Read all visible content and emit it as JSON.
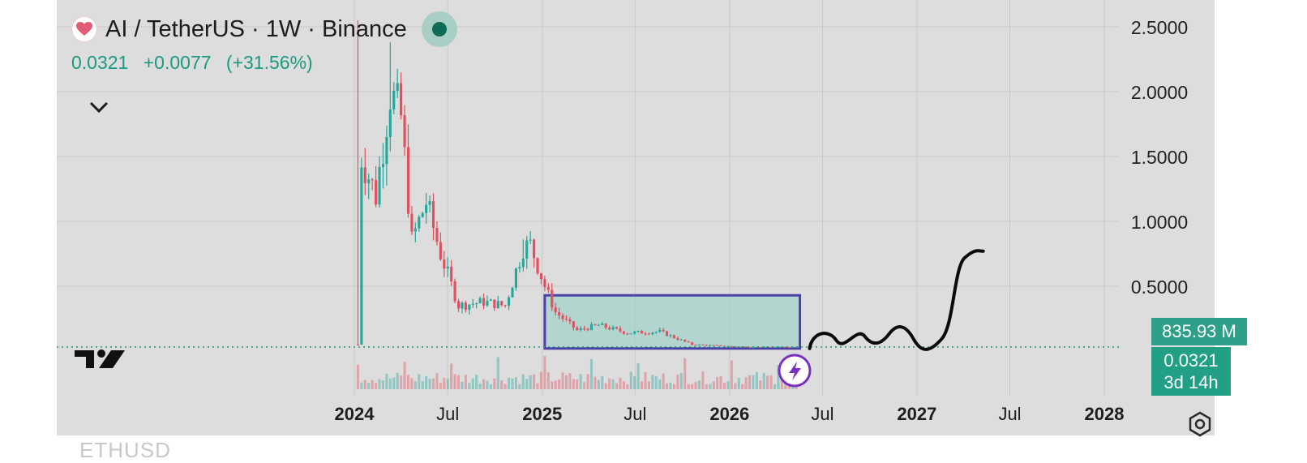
{
  "header": {
    "title": "AI / TetherUS · 1W · Binance",
    "price": "0.0321",
    "change": "+0.0077",
    "change_pct": "(+31.56%)"
  },
  "footer": {
    "next_symbol": "ETHUSD"
  },
  "badges": {
    "volume": "835.93 M",
    "price": "0.0321",
    "countdown": "3d 14h"
  },
  "colors": {
    "up": "#26a69a",
    "down": "#e0505e",
    "box_stroke": "#4b3fa8",
    "box_fill": "#9fd2ca",
    "badge": "#22a085",
    "alert": "#7b2fbe"
  },
  "icons": {
    "symbol": "heart-icon",
    "collapse": "chevron-down-icon",
    "logo": "tradingview-logo-icon",
    "settings": "gear-icon",
    "alert": "lightning-icon"
  },
  "chart_data": {
    "type": "candlestick",
    "interval": "1W",
    "y_axis_ticks": [
      "2.5000",
      "2.0000",
      "1.5000",
      "1.0000",
      "0.5000"
    ],
    "y_tick_values": [
      2.5,
      2.0,
      1.5,
      1.0,
      0.5
    ],
    "ylim": [
      0,
      2.5
    ],
    "x_axis_ticks": [
      "2024",
      "Jul",
      "2025",
      "Jul",
      "2026",
      "Jul",
      "2027",
      "Jul",
      "2028"
    ],
    "x_tick_dates": [
      "2024-01-01",
      "2024-07-01",
      "2025-01-01",
      "2025-07-01",
      "2026-01-01",
      "2026-07-01",
      "2027-01-01",
      "2027-07-01",
      "2028-01-01"
    ],
    "last_price": 0.0321,
    "price_range": {
      "high": 2.55,
      "low": 0.03
    },
    "anchors": [
      {
        "date": "2024-01-08",
        "close": 0.05,
        "high": 2.55
      },
      {
        "date": "2024-01-15",
        "close": 1.5
      },
      {
        "date": "2024-02-12",
        "close": 1.2
      },
      {
        "date": "2024-03-11",
        "close": 2.0,
        "high": 2.38
      },
      {
        "date": "2024-04-01",
        "close": 1.8
      },
      {
        "date": "2024-04-22",
        "close": 0.85
      },
      {
        "date": "2024-05-20",
        "close": 1.15
      },
      {
        "date": "2024-06-17",
        "close": 0.75
      },
      {
        "date": "2024-07-22",
        "close": 0.35
      },
      {
        "date": "2024-09-09",
        "close": 0.38
      },
      {
        "date": "2024-10-21",
        "close": 0.35
      },
      {
        "date": "2024-11-25",
        "close": 0.8,
        "high": 0.86
      },
      {
        "date": "2024-12-09",
        "close": 0.82
      },
      {
        "date": "2025-01-06",
        "close": 0.5
      },
      {
        "date": "2025-01-27",
        "close": 0.3
      },
      {
        "date": "2025-03-10",
        "close": 0.16
      },
      {
        "date": "2025-04-21",
        "close": 0.2
      },
      {
        "date": "2025-06-16",
        "close": 0.14
      },
      {
        "date": "2025-08-18",
        "close": 0.15
      },
      {
        "date": "2025-10-20",
        "close": 0.05
      },
      {
        "date": "2026-02-16",
        "close": 0.03
      },
      {
        "date": "2026-05-11",
        "close": 0.0321
      }
    ],
    "annotations": [
      {
        "type": "rectangle",
        "x": [
          "2025-01-06",
          "2026-05-18"
        ],
        "y": [
          0.02,
          0.43
        ]
      },
      {
        "type": "projection-path",
        "x": [
          "2026-05-18",
          "2027-05-10"
        ],
        "y": [
          0.02,
          0.77
        ]
      }
    ]
  }
}
